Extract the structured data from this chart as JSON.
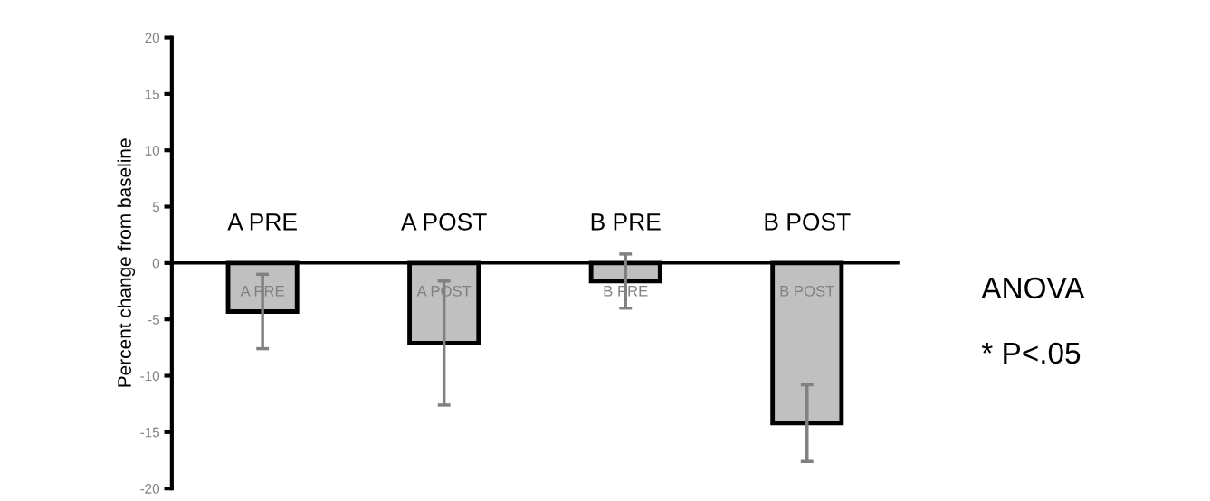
{
  "chart_data": {
    "type": "bar",
    "ylabel": "Percent change from baseline",
    "categories": [
      "A PRE",
      "A POST",
      "B PRE",
      "B POST"
    ],
    "values": [
      -4.3,
      -7.1,
      -1.6,
      -14.2
    ],
    "errors": [
      3.3,
      5.5,
      2.4,
      3.4
    ],
    "value_labels": [
      "A PRE",
      "A POST",
      "B PRE",
      "B POST"
    ],
    "color": "#c0c0c0",
    "ylim": [
      -20,
      20
    ],
    "yticks": [
      -20,
      -15,
      -10,
      -5,
      0,
      5,
      10,
      15,
      20
    ],
    "grid": false,
    "legend": false,
    "annotations": [
      "ANOVA",
      "* P<.05"
    ]
  }
}
